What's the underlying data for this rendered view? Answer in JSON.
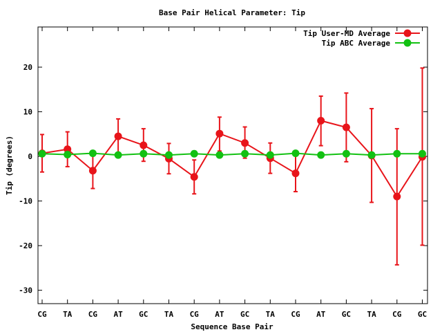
{
  "chart_data": {
    "type": "line",
    "title": "Base Pair Helical Parameter: Tip",
    "xlabel": "Sequence Base Pair",
    "ylabel": "Tip (degrees)",
    "categories": [
      "CG",
      "TA",
      "CG",
      "AT",
      "GC",
      "TA",
      "CG",
      "AT",
      "GC",
      "TA",
      "CG",
      "AT",
      "GC",
      "TA",
      "CG",
      "GC"
    ],
    "ylim": [
      -33,
      29
    ],
    "yticks": [
      -30,
      -20,
      -10,
      0,
      10,
      20
    ],
    "y_tick_labels": [
      "-30",
      "-20",
      "-10",
      "0",
      "10",
      "20"
    ],
    "legend_position": "top-right",
    "grid": false,
    "series": [
      {
        "name": "Tip User-MD Average",
        "color": "#e8141a",
        "values": [
          0.7,
          1.6,
          -3.2,
          4.5,
          2.5,
          -0.5,
          -4.6,
          5.1,
          3.0,
          -0.4,
          -3.8,
          8.0,
          6.5,
          0.2,
          -9.0,
          -0.1
        ],
        "err_low": [
          -3.5,
          -2.3,
          -7.2,
          0.4,
          -1.1,
          -3.9,
          -8.4,
          1.2,
          -0.4,
          -3.8,
          -7.9,
          2.4,
          -1.2,
          -10.3,
          -24.3,
          -19.9
        ],
        "err_high": [
          4.9,
          5.5,
          0.8,
          8.4,
          6.2,
          2.9,
          -0.8,
          8.8,
          6.6,
          3.0,
          0.2,
          13.5,
          14.2,
          10.7,
          6.2,
          19.8
        ]
      },
      {
        "name": "Tip ABC Average",
        "color": "#12c112",
        "values": [
          0.6,
          0.4,
          0.7,
          0.3,
          0.6,
          0.3,
          0.6,
          0.3,
          0.6,
          0.3,
          0.7,
          0.3,
          0.6,
          0.3,
          0.6,
          0.6
        ]
      }
    ]
  }
}
